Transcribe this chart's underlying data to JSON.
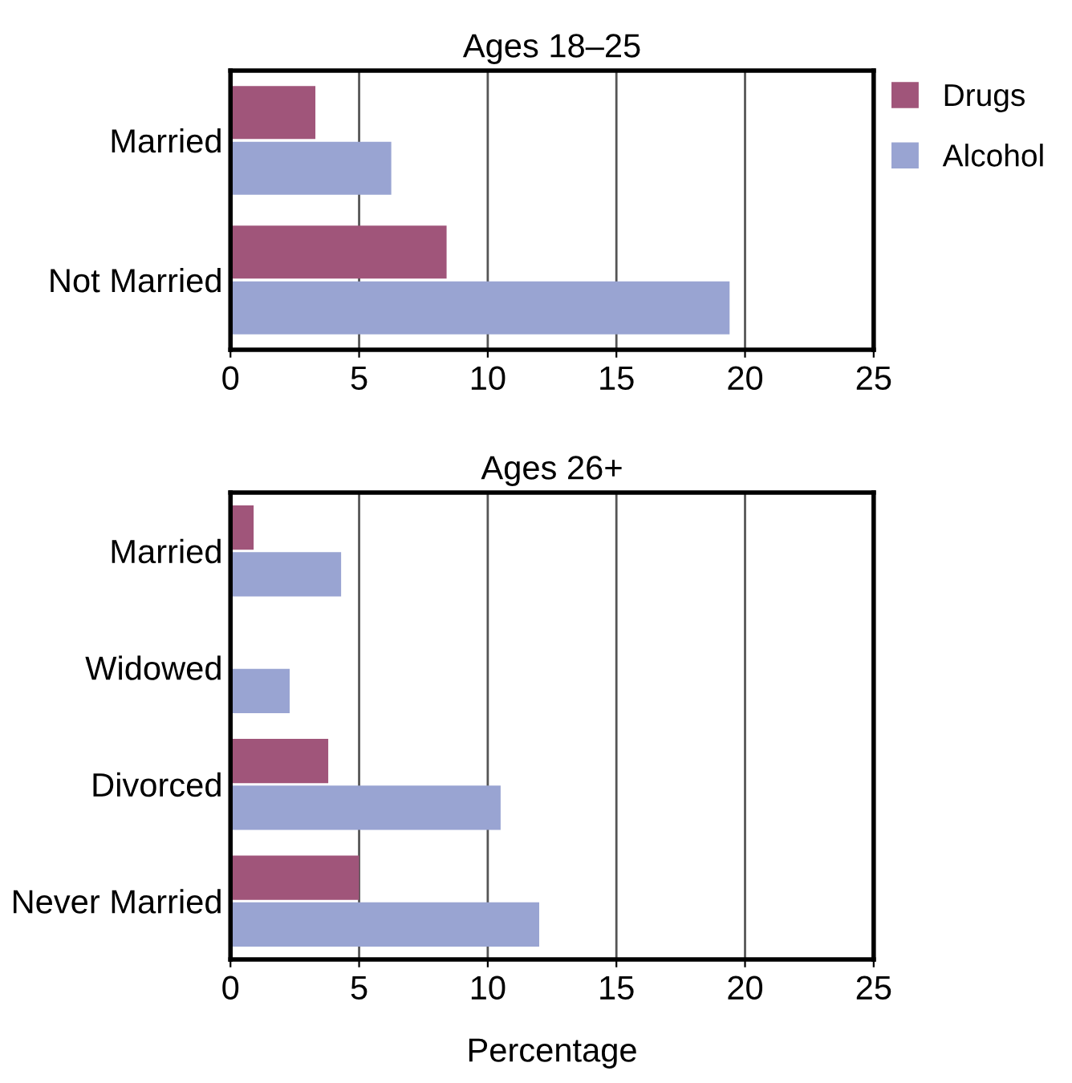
{
  "chart_data": [
    {
      "type": "bar",
      "orientation": "horizontal",
      "title": "Ages 18–25",
      "categories": [
        "Married",
        "Not Married"
      ],
      "series": [
        {
          "name": "Drugs",
          "color": "#a0557a",
          "values": [
            3.3,
            8.4
          ]
        },
        {
          "name": "Alcohol",
          "color": "#99a4d2",
          "values": [
            6.25,
            19.4
          ]
        }
      ],
      "xlim": [
        0,
        25
      ],
      "xticks": [
        0,
        5,
        10,
        15,
        20,
        25
      ],
      "grid": "x",
      "legend": "top right"
    },
    {
      "type": "bar",
      "orientation": "horizontal",
      "title": "Ages 26+",
      "xlabel": "Percentage",
      "categories": [
        "Married",
        "Widowed",
        "Divorced",
        "Never Married"
      ],
      "series": [
        {
          "color": "#a0557a",
          "values": [
            0.9,
            null,
            3.8,
            5.0
          ]
        },
        {
          "color": "#99a4d2",
          "values": [
            4.3,
            2.3,
            10.5,
            12.0
          ]
        }
      ],
      "xlim": [
        0,
        25
      ],
      "xticks": [
        0,
        5,
        10,
        15,
        20,
        25
      ],
      "grid": "x"
    }
  ]
}
